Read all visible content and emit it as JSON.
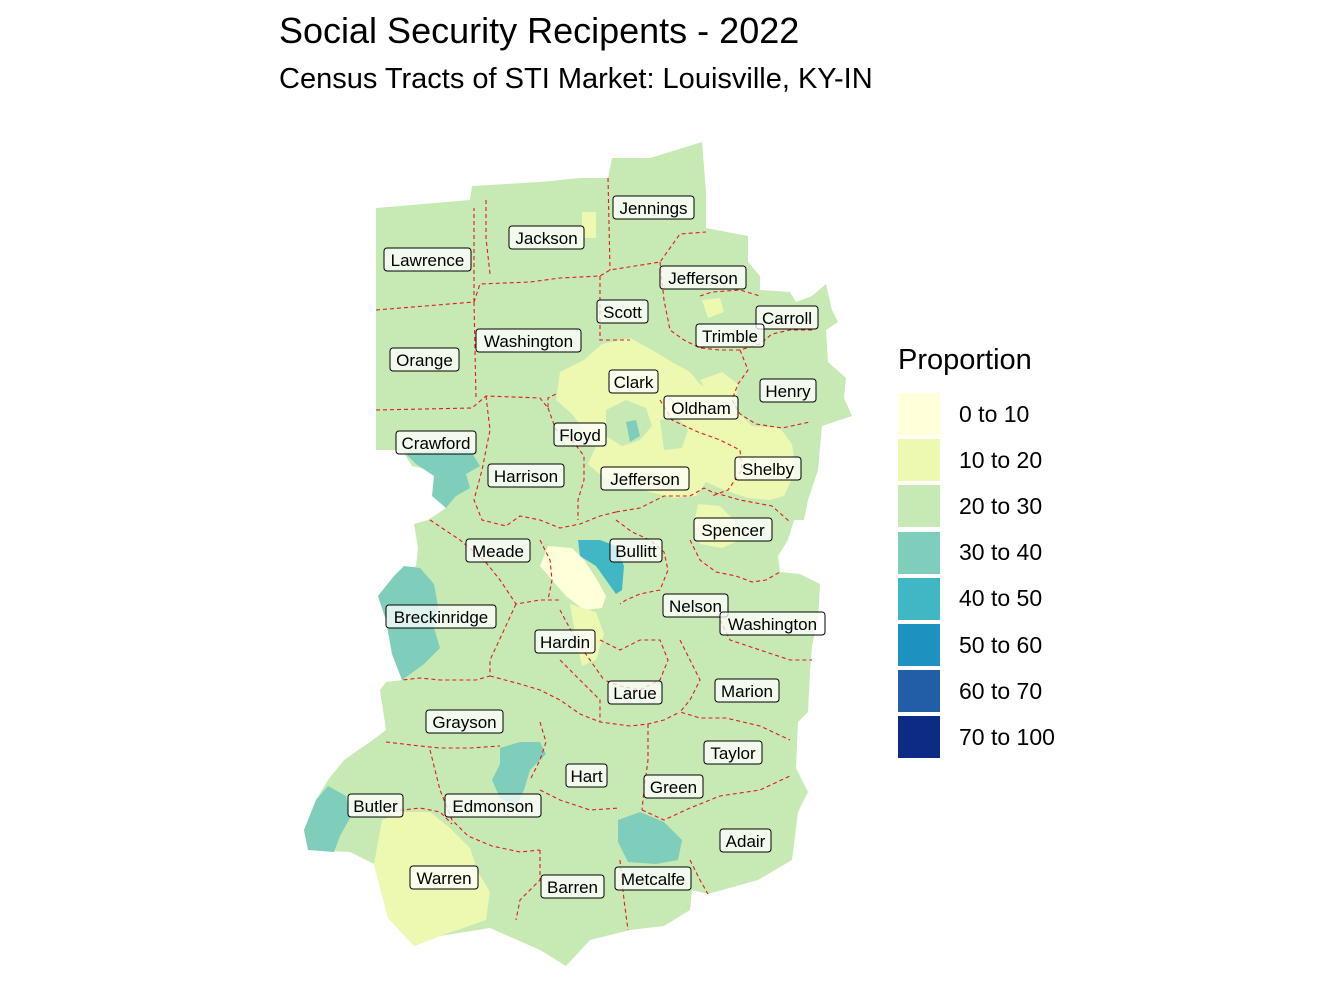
{
  "title": "Social Security Recipents - 2022",
  "subtitle": "Census Tracts of STI Market: Louisville, KY-IN",
  "legend": {
    "title": "Proportion",
    "items": [
      {
        "label": "0 to 10",
        "color": "#ffffd9"
      },
      {
        "label": "10 to 20",
        "color": "#edf8b1"
      },
      {
        "label": "20 to 30",
        "color": "#c7e9b4"
      },
      {
        "label": "30 to 40",
        "color": "#7fcdbb"
      },
      {
        "label": "40 to 50",
        "color": "#41b6c4"
      },
      {
        "label": "50 to 60",
        "color": "#1d91c0"
      },
      {
        "label": "60 to 70",
        "color": "#225ea8"
      },
      {
        "label": "70 to 100",
        "color": "#0c2c84"
      }
    ]
  },
  "county_labels": [
    "Jennings",
    "Jackson",
    "Lawrence",
    "Jefferson",
    "Scott",
    "Carroll",
    "Trimble",
    "Washington",
    "Orange",
    "Clark",
    "Henry",
    "Oldham",
    "Floyd",
    "Crawford",
    "Shelby",
    "Harrison",
    "Jefferson",
    "Spencer",
    "Meade",
    "Bullitt",
    "Nelson",
    "Breckinridge",
    "Washington",
    "Hardin",
    "Marion",
    "Larue",
    "Grayson",
    "Taylor",
    "Hart",
    "Green",
    "Butler",
    "Edmonson",
    "Adair",
    "Warren",
    "Metcalfe",
    "Barren"
  ]
}
